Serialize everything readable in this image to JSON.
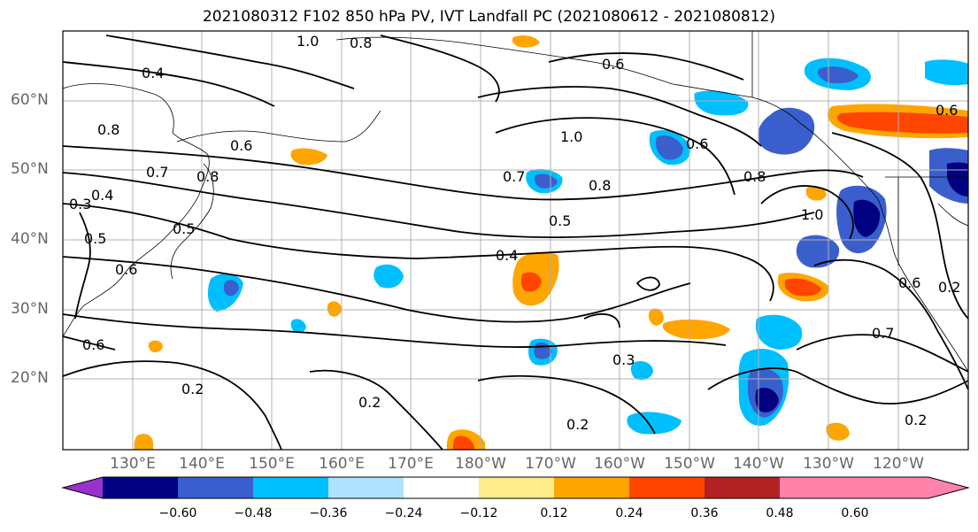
{
  "title": "2021080312 F102 850 hPa PV, IVT Landfall PC (2021080612 - 2021080812)",
  "map": {
    "lat_labels": [
      "60°N",
      "50°N",
      "40°N",
      "30°N",
      "20°N"
    ],
    "lon_labels": [
      "130°E",
      "140°E",
      "150°E",
      "160°E",
      "170°E",
      "180°W",
      "170°W",
      "160°W",
      "150°W",
      "140°W",
      "130°W",
      "120°W"
    ],
    "contour_labels": [
      "1.0",
      "0.8",
      "0.4",
      "0.6",
      "0.8",
      "0.7",
      "0.8",
      "0.3",
      "0.4",
      "0.5",
      "0.5",
      "0.6",
      "1.0",
      "0.7",
      "0.8",
      "0.5",
      "0.6",
      "0.8",
      "1.0",
      "0.4",
      "0.6",
      "0.7",
      "0.2",
      "0.2",
      "0.3",
      "0.2",
      "0.2",
      "0.6",
      "0.6",
      "0.6",
      "0.2"
    ]
  },
  "colorbar": {
    "ticks": [
      "−0.60",
      "−0.48",
      "−0.36",
      "−0.24",
      "−0.12",
      "0.12",
      "0.24",
      "0.36",
      "0.48",
      "0.60"
    ],
    "colors": [
      "#9932cc",
      "#000080",
      "#3a5fcd",
      "#00bfff",
      "#b0e2ff",
      "#ffffff",
      "#ffec8b",
      "#ffa500",
      "#ff4500",
      "#b22222",
      "#ff82ab"
    ]
  }
}
